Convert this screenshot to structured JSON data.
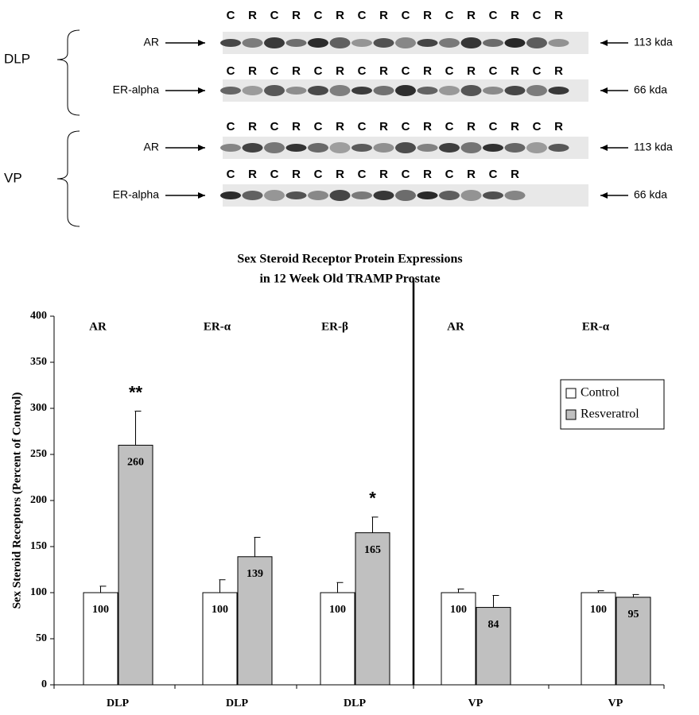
{
  "blot_panel": {
    "groups": [
      {
        "name": "DLP",
        "blots": [
          {
            "protein": "AR",
            "lanes": [
              "C",
              "R",
              "C",
              "R",
              "C",
              "R",
              "C",
              "R",
              "C",
              "R",
              "C",
              "R",
              "C",
              "R",
              "C",
              "R"
            ],
            "size": "113 kda"
          },
          {
            "protein": "ER-alpha",
            "lanes": [
              "C",
              "R",
              "C",
              "R",
              "C",
              "R",
              "C",
              "R",
              "C",
              "R",
              "C",
              "R",
              "C",
              "R",
              "C",
              "R"
            ],
            "size": "66 kda"
          }
        ]
      },
      {
        "name": "VP",
        "blots": [
          {
            "protein": "AR",
            "lanes": [
              "C",
              "R",
              "C",
              "R",
              "C",
              "R",
              "C",
              "R",
              "C",
              "R",
              "C",
              "R",
              "C",
              "R",
              "C",
              "R"
            ],
            "size": "113 kda"
          },
          {
            "protein": "ER-alpha",
            "lanes": [
              "C",
              "R",
              "C",
              "R",
              "C",
              "R",
              "C",
              "R",
              "C",
              "R",
              "C",
              "R",
              "C",
              "R"
            ],
            "size": "66 kda"
          }
        ]
      }
    ]
  },
  "chart_data": {
    "type": "bar",
    "title": [
      "Sex Steroid Receptor Protein Expressions",
      "in 12 Week Old TRAMP Prostate"
    ],
    "y_label": "Sex Steroid Receptors (Percent of Control)",
    "categories": [
      "DLP",
      "DLP",
      "DLP",
      "VP",
      "VP"
    ],
    "group_labels": [
      "AR",
      "ER-α",
      "ER-β",
      "AR",
      "ER-α"
    ],
    "series": [
      {
        "name": "Control",
        "color": "#ffffff",
        "values": [
          100,
          100,
          100,
          100,
          100
        ],
        "errors": [
          7,
          14,
          11,
          4,
          2
        ]
      },
      {
        "name": "Resveratrol",
        "color": "#c0c0c0",
        "values": [
          260,
          139,
          165,
          84,
          95
        ],
        "errors": [
          37,
          21,
          17,
          13,
          3
        ],
        "significance": [
          "**",
          null,
          "*",
          null,
          null
        ]
      }
    ],
    "ylim": [
      0,
      400
    ],
    "yticks": [
      0,
      50,
      100,
      150,
      200,
      250,
      300,
      350,
      400
    ],
    "legend": "upper-right"
  }
}
